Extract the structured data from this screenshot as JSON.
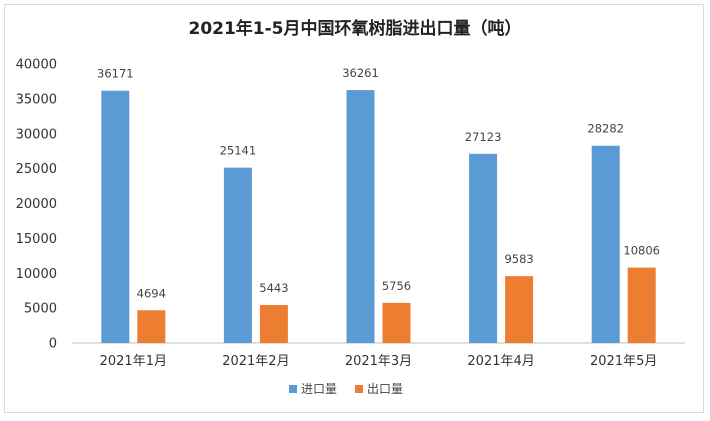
{
  "chart_data": {
    "type": "bar",
    "title": "2021年1-5月中国环氧树脂进出口量（吨）",
    "categories": [
      "2021年1月",
      "2021年2月",
      "2021年3月",
      "2021年4月",
      "2021年5月"
    ],
    "series": [
      {
        "name": "进口量",
        "color": "#5b9bd5",
        "values": [
          36171,
          25141,
          36261,
          27123,
          28282
        ]
      },
      {
        "name": "出口量",
        "color": "#ed7d31",
        "values": [
          4694,
          5443,
          5756,
          9583,
          10806
        ]
      }
    ],
    "y_ticks": [
      "0",
      "5000",
      "10000",
      "15000",
      "20000",
      "25000",
      "30000",
      "35000",
      "40000"
    ],
    "ylim": [
      0,
      40000
    ],
    "grid": false,
    "legend_position": "bottom",
    "data_labels": true
  }
}
